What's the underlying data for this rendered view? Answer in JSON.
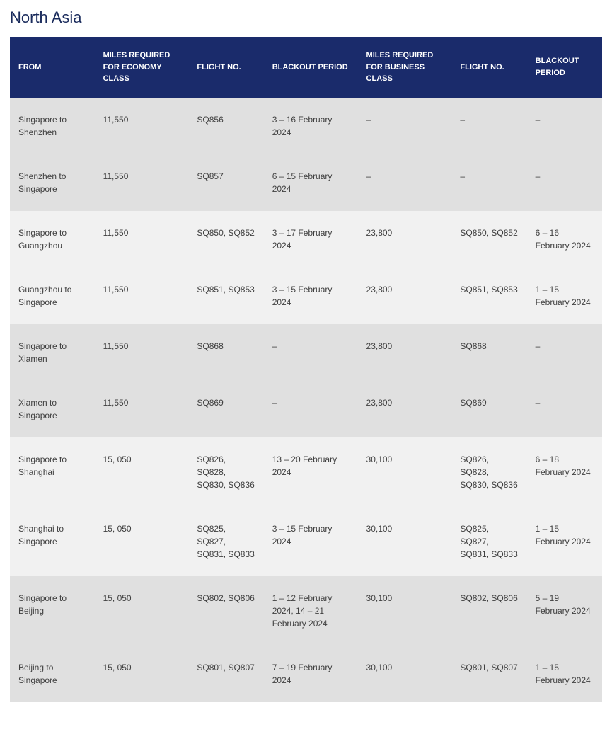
{
  "title": "North Asia",
  "columns": [
    "FROM",
    "MILES REQUIRED FOR ECONOMY CLASS",
    "FLIGHT NO.",
    "BLACKOUT PERIOD",
    "MILES REQUIRED FOR BUSINESS CLASS",
    "FLIGHT NO.",
    "BLACKOUT PERIOD"
  ],
  "groups": [
    {
      "shade": true,
      "rows": [
        {
          "from": "Singapore to Shenzhen",
          "ecoMiles": "11,550",
          "ecoFlight": "SQ856",
          "ecoBlackout": "3 – 16 February 2024",
          "bizMiles": "–",
          "bizFlight": "–",
          "bizBlackout": "–"
        },
        {
          "from": "Shenzhen to Singapore",
          "ecoMiles": "11,550",
          "ecoFlight": "SQ857",
          "ecoBlackout": "6 – 15 February 2024",
          "bizMiles": "–",
          "bizFlight": "–",
          "bizBlackout": "–"
        }
      ]
    },
    {
      "shade": false,
      "rows": [
        {
          "from": "Singapore to Guangzhou",
          "ecoMiles": "11,550",
          "ecoFlight": "SQ850, SQ852",
          "ecoBlackout": "3 – 17 February 2024",
          "bizMiles": "23,800",
          "bizFlight": "SQ850, SQ852",
          "bizBlackout": "6 – 16 February 2024"
        },
        {
          "from": "Guangzhou to Singapore",
          "ecoMiles": "11,550",
          "ecoFlight": "SQ851, SQ853",
          "ecoBlackout": "3 – 15 February 2024",
          "bizMiles": "23,800",
          "bizFlight": "SQ851, SQ853",
          "bizBlackout": "1 – 15 February 2024"
        }
      ]
    },
    {
      "shade": true,
      "rows": [
        {
          "from": "Singapore to Xiamen",
          "ecoMiles": "11,550",
          "ecoFlight": "SQ868",
          "ecoBlackout": "–",
          "bizMiles": "23,800",
          "bizFlight": "SQ868",
          "bizBlackout": "–"
        },
        {
          "from": "Xiamen to Singapore",
          "ecoMiles": "11,550",
          "ecoFlight": "SQ869",
          "ecoBlackout": "–",
          "bizMiles": "23,800",
          "bizFlight": "SQ869",
          "bizBlackout": "–"
        }
      ]
    },
    {
      "shade": false,
      "rows": [
        {
          "from": "Singapore to Shanghai",
          "ecoMiles": "15, 050",
          "ecoFlight": "SQ826, SQ828, SQ830, SQ836",
          "ecoBlackout": "13 – 20 February 2024",
          "bizMiles": "30,100",
          "bizFlight": "SQ826, SQ828, SQ830, SQ836",
          "bizBlackout": "6 – 18 February 2024"
        },
        {
          "from": "Shanghai to Singapore",
          "ecoMiles": "15, 050",
          "ecoFlight": "SQ825, SQ827, SQ831, SQ833",
          "ecoBlackout": "3 – 15 February 2024",
          "bizMiles": "30,100",
          "bizFlight": "SQ825, SQ827, SQ831, SQ833",
          "bizBlackout": "1 – 15 February 2024"
        }
      ]
    },
    {
      "shade": true,
      "rows": [
        {
          "from": "Singapore to Beijing",
          "ecoMiles": "15, 050",
          "ecoFlight": "SQ802, SQ806",
          "ecoBlackout": "1 – 12 February 2024, 14 – 21 February 2024",
          "bizMiles": "30,100",
          "bizFlight": "SQ802, SQ806",
          "bizBlackout": "5 – 19 February 2024"
        },
        {
          "from": "Beijing to Singapore",
          "ecoMiles": "15, 050",
          "ecoFlight": "SQ801, SQ807",
          "ecoBlackout": "7 – 19 February 2024",
          "bizMiles": "30,100",
          "bizFlight": "SQ801, SQ807",
          "bizBlackout": "1 – 15 February 2024"
        }
      ]
    }
  ],
  "colors": {
    "header_bg": "#1a2b6b",
    "header_text": "#ffffff",
    "title_text": "#1a2b5c",
    "row_shade": "#e0e0e0",
    "row_plain": "#f1f1f1",
    "body_text": "#404040"
  }
}
